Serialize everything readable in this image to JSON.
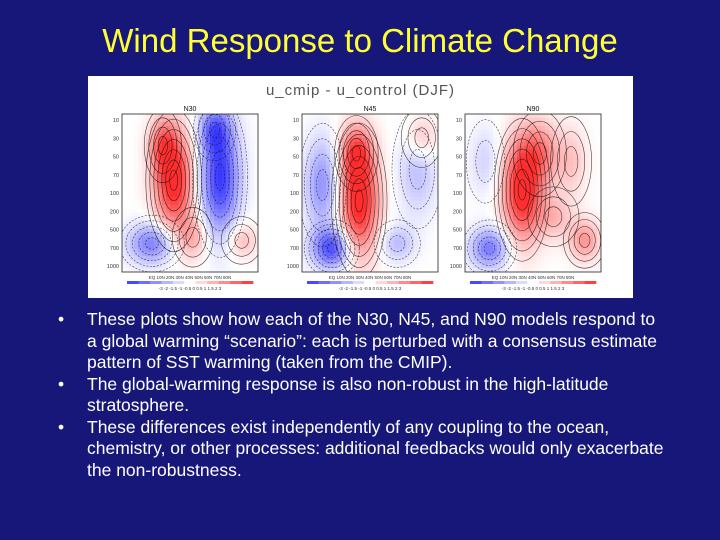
{
  "slide": {
    "title": "Wind Response to Climate Change"
  },
  "figure": {
    "caption": "u_cmip - u_control (DJF)",
    "panels": [
      {
        "label": "N30",
        "mode": "n30"
      },
      {
        "label": "N45",
        "mode": "n45"
      },
      {
        "label": "N90",
        "mode": "n90"
      }
    ],
    "pressure_ticks": [
      "10",
      "30",
      "50",
      "70",
      "100",
      "200",
      "500",
      "700",
      "1000"
    ],
    "lat_labels": "EQ 10N 20N 30N 40N 50N 60N 70N 80N",
    "colorbar_labels": "-3 -2 -1.5 -1 -0.5 0 0.5 1 1.5 2 3",
    "colors": {
      "positive": "#d92222",
      "negative": "#3a3ad8",
      "contour": "#111111"
    }
  },
  "bullets": [
    "These plots show how each of the N30, N45, and N90 models respond to a global warming “scenario”: each is perturbed with a consensus estimate pattern of SST warming (taken from the CMIP).",
    "The global-warming response is also non-robust in the high-latitude stratosphere.",
    "These differences exist independently of any coupling to the ocean, chemistry, or other processes: additional feedbacks would only exacerbate the non-robustness."
  ]
}
